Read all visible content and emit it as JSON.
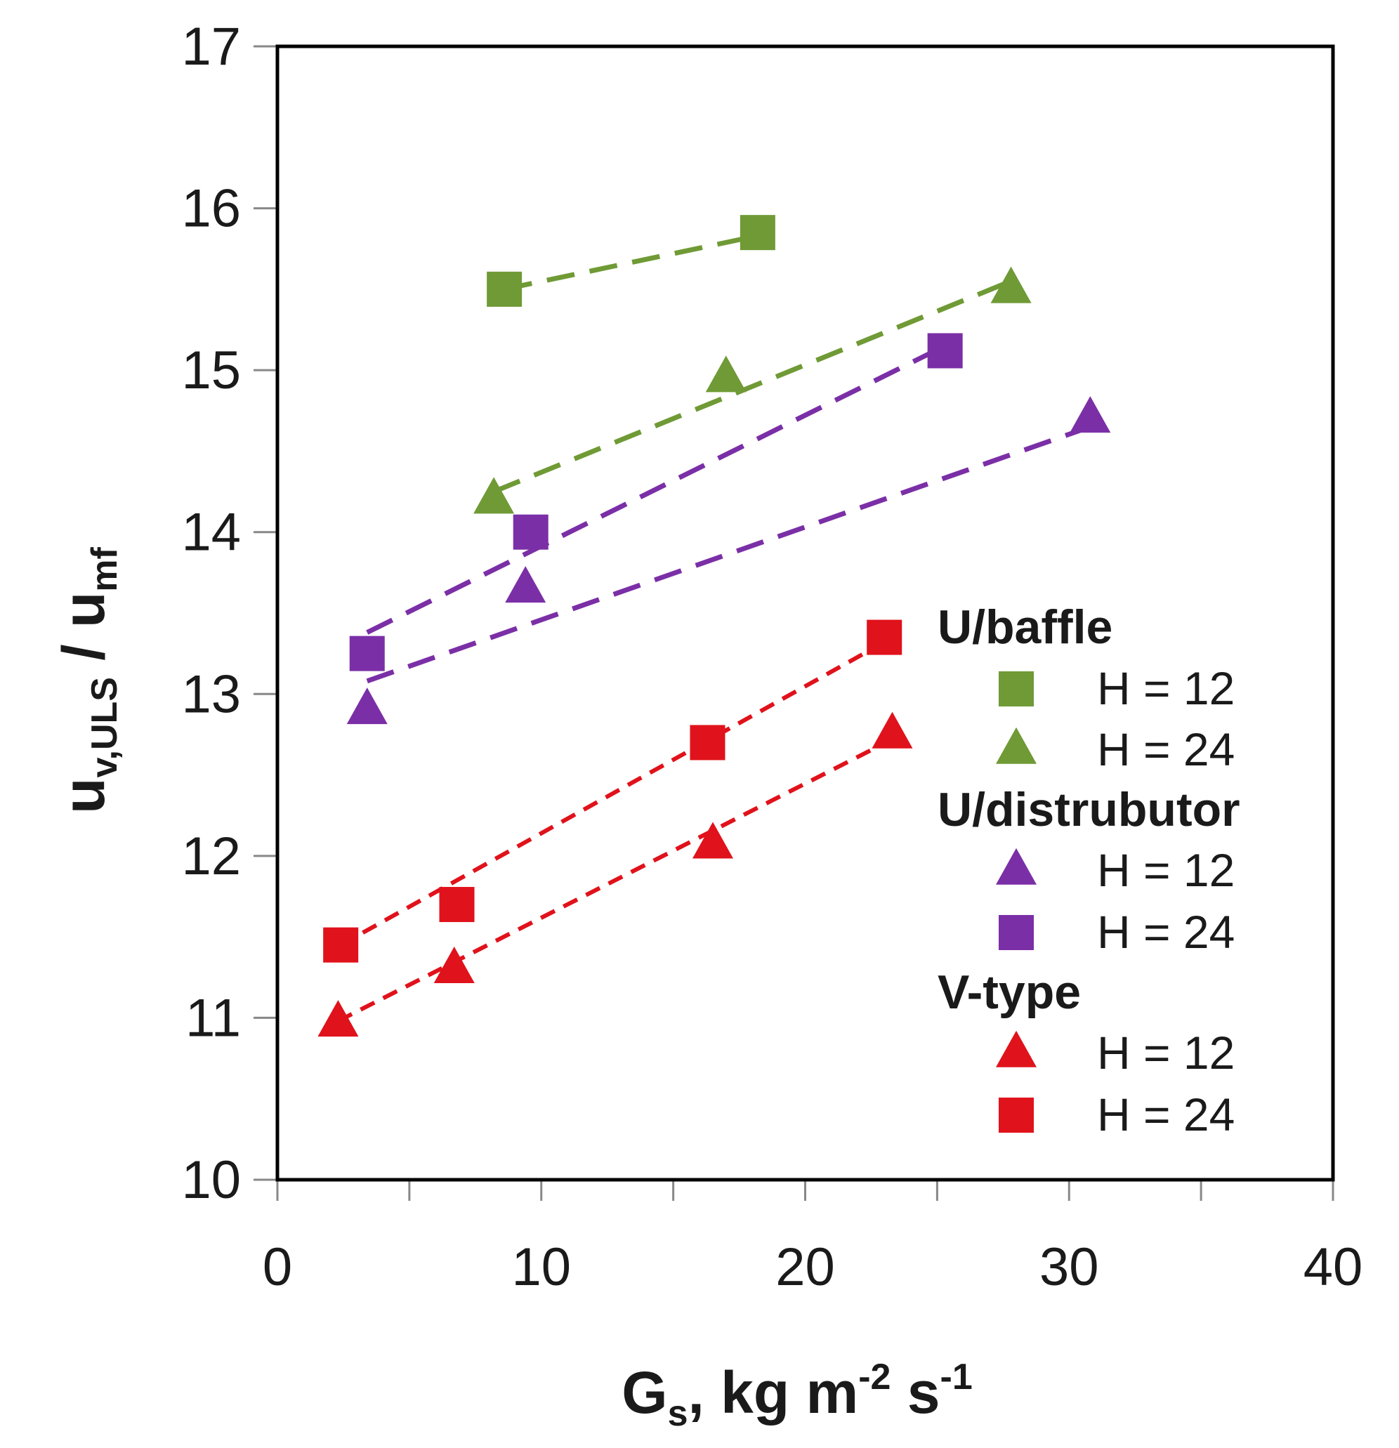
{
  "chart_data": {
    "type": "scatter",
    "title": "",
    "xlabel": {
      "base": "G",
      "sub": "s",
      "text": ", kg m",
      "sup1": "-2",
      "mid": " s",
      "sup2": "-1"
    },
    "ylabel": {
      "base": "u",
      "sub": "v,ULS",
      "mid": " / u",
      "sub2": "mf"
    },
    "xlim": [
      0,
      40
    ],
    "ylim": [
      10,
      17
    ],
    "x_ticks": [
      0,
      10,
      20,
      30,
      40
    ],
    "y_ticks": [
      10,
      11,
      12,
      13,
      14,
      15,
      16,
      17
    ],
    "x_tick_labels": [
      "0",
      "10",
      "20",
      "30",
      "40"
    ],
    "y_tick_labels": [
      "10",
      "11",
      "12",
      "13",
      "14",
      "15",
      "16",
      "17"
    ],
    "grid": false,
    "legend_position": "right",
    "groups": [
      {
        "name": "U/baffle",
        "color": "#6f9a35"
      },
      {
        "name": "U/distrubutor",
        "color": "#7b2fa6"
      },
      {
        "name": "V-type",
        "color": "#e0121b"
      }
    ],
    "series": [
      {
        "group": 0,
        "name": "H = 12",
        "marker": "square",
        "color": "#6f9a35",
        "dash": "long",
        "x": [
          8.6,
          18.2
        ],
        "y": [
          15.5,
          15.85
        ]
      },
      {
        "group": 0,
        "name": "H = 24",
        "marker": "triangle",
        "color": "#6f9a35",
        "dash": "long",
        "x": [
          8.2,
          17.0,
          27.8
        ],
        "y": [
          14.2,
          14.95,
          15.5
        ]
      },
      {
        "group": 1,
        "name": "H = 12",
        "marker": "triangle",
        "color": "#7b2fa6",
        "dash": "long",
        "x": [
          3.4,
          9.4,
          30.8
        ],
        "y": [
          12.9,
          13.65,
          14.7
        ]
      },
      {
        "group": 1,
        "name": "H = 24",
        "marker": "square",
        "color": "#7b2fa6",
        "dash": "long",
        "x": [
          3.4,
          9.6,
          25.3
        ],
        "y": [
          13.25,
          14.0,
          15.12
        ]
      },
      {
        "group": 2,
        "name": "H = 12",
        "marker": "triangle",
        "color": "#e0121b",
        "dash": "short",
        "x": [
          2.3,
          6.7,
          16.5,
          23.3
        ],
        "y": [
          10.97,
          11.3,
          12.07,
          12.75
        ]
      },
      {
        "group": 2,
        "name": "H = 24",
        "marker": "square",
        "color": "#e0121b",
        "dash": "short",
        "x": [
          2.4,
          6.8,
          16.3,
          23.0
        ],
        "y": [
          11.45,
          11.7,
          12.7,
          13.35
        ]
      }
    ],
    "fit_lines": [
      {
        "series": 0,
        "x": [
          8.6,
          18.2
        ],
        "y": [
          15.5,
          15.83
        ]
      },
      {
        "series": 1,
        "x": [
          8.2,
          27.8
        ],
        "y": [
          14.25,
          15.55
        ]
      },
      {
        "series": 2,
        "x": [
          3.4,
          30.8
        ],
        "y": [
          13.08,
          14.65
        ]
      },
      {
        "series": 3,
        "x": [
          3.4,
          25.3
        ],
        "y": [
          13.38,
          15.15
        ]
      },
      {
        "series": 4,
        "x": [
          2.3,
          23.3
        ],
        "y": [
          10.98,
          12.72
        ]
      },
      {
        "series": 5,
        "x": [
          2.4,
          23.0
        ],
        "y": [
          11.45,
          13.32
        ]
      }
    ]
  }
}
